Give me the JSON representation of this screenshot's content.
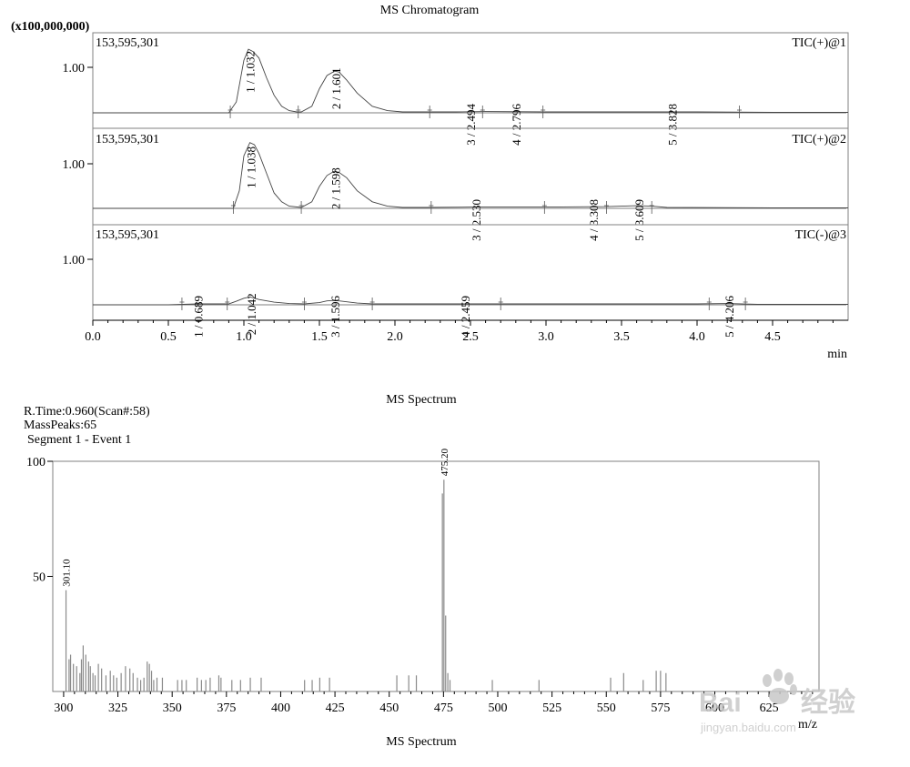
{
  "chart_data": [
    {
      "type": "line",
      "title": "MS Chromatogram",
      "scale_label": "(x100,000,000)",
      "xlabel": "min",
      "xlim": [
        0.0,
        5.0
      ],
      "x_ticks": [
        "0.0",
        "0.5",
        "1.0",
        "1.5",
        "2.0",
        "2.5",
        "3.0",
        "3.5",
        "4.0",
        "4.5"
      ],
      "x_tick_values": [
        0.0,
        0.5,
        1.0,
        1.5,
        2.0,
        2.5,
        3.0,
        3.5,
        4.0,
        4.5
      ],
      "grid": false,
      "panels": [
        {
          "trace": "TIC(+)@1",
          "intensity_max": "153,595,301",
          "y_tick": "1.00",
          "ylim": [
            0,
            1.536
          ],
          "baseline": 0.0,
          "series": {
            "x": [
              0.0,
              0.5,
              0.9,
              0.95,
              1.0,
              1.03,
              1.06,
              1.1,
              1.15,
              1.2,
              1.25,
              1.3,
              1.35,
              1.38,
              1.45,
              1.5,
              1.55,
              1.6,
              1.63,
              1.68,
              1.75,
              1.85,
              1.95,
              2.05,
              2.2,
              2.4,
              2.6,
              3.0,
              3.5,
              4.0,
              4.5,
              5.0
            ],
            "y": [
              0.0,
              0.0,
              0.0,
              0.25,
              1.2,
              1.45,
              1.4,
              1.25,
              0.8,
              0.4,
              0.15,
              0.05,
              0.02,
              0.02,
              0.15,
              0.55,
              0.85,
              0.95,
              0.93,
              0.75,
              0.45,
              0.15,
              0.05,
              0.02,
              0.02,
              0.02,
              0.03,
              0.02,
              0.02,
              0.02,
              0.01,
              0.01
            ]
          },
          "peak_labels": [
            "1 / 1.032",
            "2 / 1.601",
            "3 / 2.494",
            "4 / 2.796",
            "5 / 3.828"
          ],
          "peak_times": [
            1.032,
            1.601,
            2.494,
            2.796,
            3.828
          ],
          "integration_markers": [
            0.91,
            1.36,
            2.23,
            2.58,
            2.98,
            4.28
          ]
        },
        {
          "trace": "TIC(+)@2",
          "intensity_max": "153,595,301",
          "y_tick": "1.00",
          "ylim": [
            0,
            1.536
          ],
          "baseline": 0.0,
          "series": {
            "x": [
              0.0,
              0.5,
              0.93,
              0.97,
              1.0,
              1.04,
              1.07,
              1.1,
              1.15,
              1.2,
              1.25,
              1.3,
              1.38,
              1.45,
              1.5,
              1.55,
              1.6,
              1.63,
              1.68,
              1.75,
              1.85,
              1.95,
              2.05,
              2.2,
              2.5,
              3.0,
              3.4,
              3.6,
              3.7,
              3.8,
              4.5,
              5.0
            ],
            "y": [
              0.0,
              0.0,
              0.0,
              0.4,
              1.2,
              1.5,
              1.45,
              1.25,
              0.8,
              0.35,
              0.15,
              0.05,
              0.02,
              0.15,
              0.5,
              0.75,
              0.85,
              0.82,
              0.7,
              0.4,
              0.15,
              0.05,
              0.02,
              0.02,
              0.03,
              0.03,
              0.04,
              0.06,
              0.05,
              0.02,
              0.01,
              0.01
            ]
          },
          "peak_labels": [
            "1 / 1.038",
            "2 / 1.598",
            "3 / 2.530",
            "4 / 3.308",
            "5 / 3.609"
          ],
          "peak_times": [
            1.038,
            1.598,
            2.53,
            3.308,
            3.609
          ],
          "integration_markers": [
            0.93,
            1.38,
            2.24,
            2.99,
            3.4,
            3.7
          ]
        },
        {
          "trace": "TIC(-)@3",
          "intensity_max": "153,595,301",
          "y_tick": "1.00",
          "ylim": [
            0,
            1.536
          ],
          "baseline": 0.0,
          "series": {
            "x": [
              0.0,
              0.5,
              0.6,
              0.7,
              0.9,
              0.95,
              1.0,
              1.04,
              1.1,
              1.2,
              1.3,
              1.4,
              1.5,
              1.55,
              1.6,
              1.65,
              1.75,
              1.85,
              2.0,
              2.5,
              3.0,
              3.5,
              4.0,
              4.2,
              4.4,
              5.0
            ],
            "y": [
              0.0,
              0.0,
              0.01,
              0.02,
              0.02,
              0.08,
              0.15,
              0.18,
              0.12,
              0.06,
              0.03,
              0.02,
              0.05,
              0.09,
              0.1,
              0.08,
              0.04,
              0.02,
              0.02,
              0.02,
              0.02,
              0.02,
              0.02,
              0.03,
              0.01,
              0.01
            ]
          },
          "peak_labels": [
            "1 / 0.689",
            "2 / 1.042",
            "3 / 1.596",
            "4 / 2.459",
            "5 / 4.206"
          ],
          "peak_times": [
            0.689,
            1.042,
            1.596,
            2.459,
            4.206
          ],
          "integration_markers": [
            0.59,
            0.89,
            1.4,
            1.85,
            2.7,
            4.08,
            4.32
          ]
        }
      ]
    },
    {
      "type": "bar",
      "title": "MS Spectrum",
      "info_lines": [
        "R.Time:0.960(Scan#:58)",
        "MassPeaks:65",
        "Segment 1 - Event 1"
      ],
      "xlabel": "m/z",
      "ylabel": "",
      "xlim": [
        295,
        648
      ],
      "ylim": [
        0,
        100
      ],
      "y_ticks": [
        "50",
        "100"
      ],
      "y_tick_values": [
        50,
        100
      ],
      "x_ticks": [
        "300",
        "325",
        "350",
        "375",
        "400",
        "425",
        "450",
        "475",
        "500",
        "525",
        "550",
        "575",
        "600",
        "625"
      ],
      "x_tick_values": [
        300,
        325,
        350,
        375,
        400,
        425,
        450,
        475,
        500,
        525,
        550,
        575,
        600,
        625
      ],
      "peak_labels": [
        "301.10",
        "475.20"
      ],
      "peak_label_mz": [
        301.1,
        475.2
      ],
      "peaks": {
        "mz": [
          301.1,
          302.5,
          303.2,
          304.5,
          306.0,
          307.5,
          308.2,
          309.0,
          310.2,
          311.5,
          312.3,
          313.5,
          314.5,
          316.0,
          317.5,
          319.5,
          321.5,
          323.0,
          324.5,
          326.5,
          328.5,
          330.5,
          332.0,
          334.0,
          335.5,
          337.0,
          338.5,
          339.5,
          340.5,
          341.5,
          343.0,
          345.5,
          352.5,
          354.5,
          356.5,
          361.5,
          363.5,
          365.5,
          367.5,
          371.5,
          372.5,
          377.5,
          381.5,
          386.0,
          391.0,
          411.0,
          414.5,
          418.0,
          422.5,
          453.5,
          459.0,
          462.5,
          474.5,
          475.2,
          476.0,
          477.0,
          478.0,
          497.5,
          519.0,
          552.0,
          558.0,
          567.0,
          573.0,
          575.0,
          577.5
        ],
        "intensity": [
          44,
          14,
          16,
          12,
          11,
          8,
          14,
          20,
          16,
          13,
          11,
          8,
          7,
          12,
          10,
          7,
          9,
          7,
          6,
          8,
          11,
          10,
          8,
          6,
          5,
          6,
          13,
          12,
          9,
          5,
          6,
          6,
          5,
          5,
          5,
          6,
          5,
          5,
          6,
          7,
          6,
          5,
          5,
          6,
          6,
          5,
          5,
          6,
          6,
          7,
          7,
          7,
          86,
          92,
          33,
          8,
          5,
          5,
          5,
          6,
          8,
          5,
          9,
          9,
          8
        ]
      }
    }
  ],
  "bottom_caption": "MS Spectrum",
  "watermark": {
    "brand": "Bai",
    "brand_cn": "经验",
    "url": "jingyan.baidu.com",
    "color": "#c8c8c8"
  }
}
